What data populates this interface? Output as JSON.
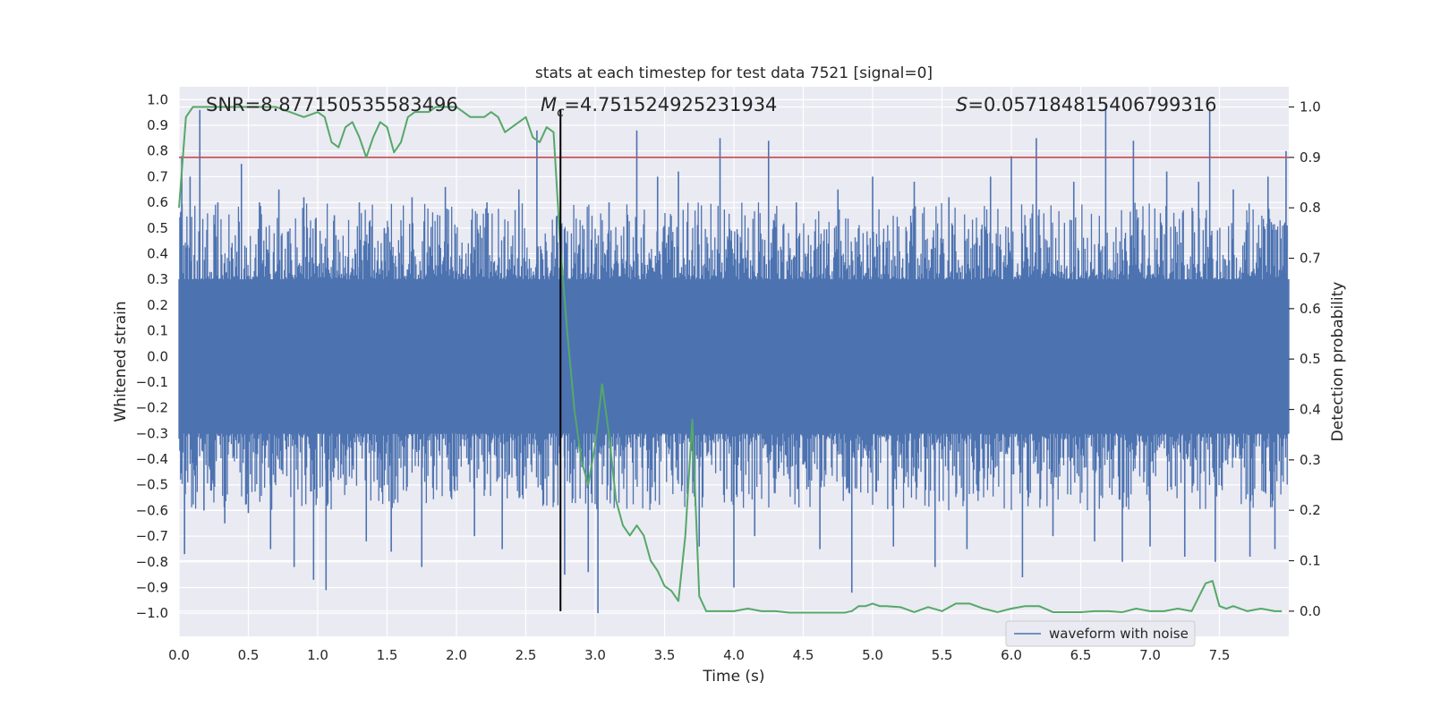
{
  "chart_data": {
    "type": "line",
    "title": "stats at each timestep for test data 7521 [signal=0]",
    "xlabel": "Time (s)",
    "ylabel_left": "Whitened strain",
    "ylabel_right": "Detection probability",
    "xlim": [
      0.0,
      8.0
    ],
    "ylim_left": [
      -1.09,
      1.05
    ],
    "ylim_right": [
      -0.05,
      1.04
    ],
    "x_ticks": [
      0.0,
      0.5,
      1.0,
      1.5,
      2.0,
      2.5,
      3.0,
      3.5,
      4.0,
      4.5,
      5.0,
      5.5,
      6.0,
      6.5,
      7.0,
      7.5
    ],
    "x_tick_labels": [
      "0.0",
      "0.5",
      "1.0",
      "1.5",
      "2.0",
      "2.5",
      "3.0",
      "3.5",
      "4.0",
      "4.5",
      "5.0",
      "5.5",
      "6.0",
      "6.5",
      "7.0",
      "7.5"
    ],
    "y_left_ticks": [
      1.0,
      0.9,
      0.8,
      0.7,
      0.6,
      0.5,
      0.4,
      0.3,
      0.2,
      0.1,
      0.0,
      -0.1,
      -0.2,
      -0.3,
      -0.4,
      -0.5,
      -0.6,
      -0.7,
      -0.8,
      -0.9,
      -1.0
    ],
    "y_left_tick_labels": [
      "1.0",
      "0.9",
      "0.8",
      "0.7",
      "0.6",
      "0.5",
      "0.4",
      "0.3",
      "0.2",
      "0.1",
      "0.0",
      "−0.1",
      "−0.2",
      "−0.3",
      "−0.4",
      "−0.5",
      "−0.6",
      "−0.7",
      "−0.8",
      "−0.9",
      "−1.0"
    ],
    "y_right_ticks": [
      1.0,
      0.9,
      0.8,
      0.7,
      0.6,
      0.5,
      0.4,
      0.3,
      0.2,
      0.1,
      0.0
    ],
    "y_right_tick_labels": [
      "1.0",
      "0.9",
      "0.8",
      "0.7",
      "0.6",
      "0.5",
      "0.4",
      "0.3",
      "0.2",
      "0.1",
      "0.0"
    ],
    "grid": true,
    "legend": {
      "placement": "lower-right",
      "entries": [
        "waveform with noise"
      ]
    },
    "annotations": {
      "snr": "SNR=8.877150535583496",
      "mc_symbol": "M",
      "mc_sub": "c",
      "mc_value": "=4.751524925231934",
      "s_symbol": "S",
      "s_value": "=0.057184815406799316"
    },
    "threshold": {
      "axis": "right",
      "value": 0.9
    },
    "marker_time": 2.75,
    "waveform": {
      "name": "waveform with noise",
      "typical_envelope": [
        -0.3,
        0.3
      ],
      "peaks": [
        {
          "x": 0.02,
          "y": 0.78
        },
        {
          "x": 0.04,
          "y": -0.77
        },
        {
          "x": 0.08,
          "y": 0.7
        },
        {
          "x": 0.15,
          "y": 0.96
        },
        {
          "x": 0.18,
          "y": -0.6
        },
        {
          "x": 0.28,
          "y": 0.6
        },
        {
          "x": 0.33,
          "y": -0.65
        },
        {
          "x": 0.45,
          "y": 0.75
        },
        {
          "x": 0.5,
          "y": -0.61
        },
        {
          "x": 0.58,
          "y": 0.6
        },
        {
          "x": 0.66,
          "y": -0.75
        },
        {
          "x": 0.72,
          "y": 0.65
        },
        {
          "x": 0.83,
          "y": -0.82
        },
        {
          "x": 0.9,
          "y": 0.62
        },
        {
          "x": 0.97,
          "y": -0.87
        },
        {
          "x": 1.06,
          "y": -0.91
        },
        {
          "x": 1.12,
          "y": 0.55
        },
        {
          "x": 1.3,
          "y": 0.6
        },
        {
          "x": 1.35,
          "y": -0.72
        },
        {
          "x": 1.48,
          "y": 0.5
        },
        {
          "x": 1.53,
          "y": -0.76
        },
        {
          "x": 1.68,
          "y": 0.62
        },
        {
          "x": 1.75,
          "y": -0.82
        },
        {
          "x": 1.92,
          "y": 0.66
        },
        {
          "x": 2.13,
          "y": -0.7
        },
        {
          "x": 2.22,
          "y": 0.6
        },
        {
          "x": 2.33,
          "y": -0.75
        },
        {
          "x": 2.45,
          "y": 0.65
        },
        {
          "x": 2.58,
          "y": 0.88
        },
        {
          "x": 2.78,
          "y": -0.85
        },
        {
          "x": 2.95,
          "y": -0.84
        },
        {
          "x": 3.02,
          "y": -1.0
        },
        {
          "x": 3.1,
          "y": 0.6
        },
        {
          "x": 3.3,
          "y": 0.88
        },
        {
          "x": 3.45,
          "y": 0.7
        },
        {
          "x": 3.6,
          "y": 0.72
        },
        {
          "x": 3.75,
          "y": -0.74
        },
        {
          "x": 3.9,
          "y": 0.85
        },
        {
          "x": 4.0,
          "y": -0.9
        },
        {
          "x": 4.15,
          "y": -0.7
        },
        {
          "x": 4.25,
          "y": 0.84
        },
        {
          "x": 4.45,
          "y": 0.6
        },
        {
          "x": 4.62,
          "y": -0.75
        },
        {
          "x": 4.75,
          "y": 0.65
        },
        {
          "x": 4.85,
          "y": -0.92
        },
        {
          "x": 5.0,
          "y": 0.7
        },
        {
          "x": 5.15,
          "y": -0.74
        },
        {
          "x": 5.3,
          "y": 0.68
        },
        {
          "x": 5.45,
          "y": -0.82
        },
        {
          "x": 5.55,
          "y": 0.62
        },
        {
          "x": 5.68,
          "y": -0.75
        },
        {
          "x": 5.85,
          "y": 0.7
        },
        {
          "x": 6.0,
          "y": 0.78
        },
        {
          "x": 6.08,
          "y": -0.86
        },
        {
          "x": 6.18,
          "y": 0.85
        },
        {
          "x": 6.3,
          "y": -0.7
        },
        {
          "x": 6.45,
          "y": 0.68
        },
        {
          "x": 6.6,
          "y": -0.72
        },
        {
          "x": 6.68,
          "y": 0.98
        },
        {
          "x": 6.8,
          "y": -0.8
        },
        {
          "x": 6.88,
          "y": 0.84
        },
        {
          "x": 7.0,
          "y": -0.74
        },
        {
          "x": 7.12,
          "y": 0.72
        },
        {
          "x": 7.25,
          "y": -0.78
        },
        {
          "x": 7.35,
          "y": 0.68
        },
        {
          "x": 7.43,
          "y": 0.96
        },
        {
          "x": 7.47,
          "y": -0.8
        },
        {
          "x": 7.6,
          "y": 0.65
        },
        {
          "x": 7.72,
          "y": -0.78
        },
        {
          "x": 7.85,
          "y": 0.7
        },
        {
          "x": 7.9,
          "y": -0.75
        },
        {
          "x": 7.98,
          "y": 0.8
        }
      ]
    },
    "probability_series": {
      "x": [
        0.0,
        0.05,
        0.1,
        0.15,
        0.2,
        0.3,
        0.4,
        0.5,
        0.6,
        0.7,
        0.8,
        0.9,
        1.0,
        1.05,
        1.1,
        1.15,
        1.2,
        1.25,
        1.3,
        1.35,
        1.4,
        1.45,
        1.5,
        1.55,
        1.6,
        1.65,
        1.7,
        1.75,
        1.8,
        1.85,
        1.9,
        1.95,
        2.0,
        2.05,
        2.1,
        2.15,
        2.2,
        2.25,
        2.3,
        2.35,
        2.4,
        2.45,
        2.5,
        2.55,
        2.6,
        2.65,
        2.7,
        2.75,
        2.8,
        2.85,
        2.9,
        2.95,
        3.0,
        3.05,
        3.1,
        3.15,
        3.2,
        3.25,
        3.3,
        3.35,
        3.4,
        3.45,
        3.5,
        3.55,
        3.6,
        3.65,
        3.7,
        3.75,
        3.8,
        3.9,
        4.0,
        4.1,
        4.2,
        4.3,
        4.4,
        4.5,
        4.6,
        4.7,
        4.8,
        4.85,
        4.9,
        4.95,
        5.0,
        5.05,
        5.1,
        5.2,
        5.3,
        5.4,
        5.5,
        5.6,
        5.7,
        5.8,
        5.9,
        6.0,
        6.1,
        6.2,
        6.3,
        6.4,
        6.5,
        6.6,
        6.7,
        6.8,
        6.9,
        7.0,
        7.1,
        7.2,
        7.3,
        7.4,
        7.45,
        7.5,
        7.55,
        7.6,
        7.65,
        7.7,
        7.8,
        7.9,
        7.95
      ],
      "y": [
        0.8,
        0.98,
        1.0,
        1.0,
        1.0,
        1.0,
        1.0,
        1.0,
        1.0,
        1.0,
        0.99,
        0.98,
        0.99,
        0.98,
        0.93,
        0.92,
        0.96,
        0.97,
        0.94,
        0.9,
        0.94,
        0.97,
        0.96,
        0.91,
        0.93,
        0.98,
        0.99,
        0.99,
        0.99,
        1.0,
        1.0,
        1.0,
        1.0,
        0.99,
        0.98,
        0.98,
        0.98,
        0.99,
        0.98,
        0.95,
        0.96,
        0.97,
        0.98,
        0.94,
        0.93,
        0.96,
        0.95,
        0.72,
        0.55,
        0.4,
        0.3,
        0.25,
        0.33,
        0.45,
        0.35,
        0.22,
        0.17,
        0.15,
        0.17,
        0.15,
        0.1,
        0.08,
        0.05,
        0.04,
        0.02,
        0.15,
        0.38,
        0.03,
        0.0,
        0.0,
        0.0,
        0.005,
        0.0,
        0.0,
        -0.003,
        -0.003,
        -0.003,
        -0.003,
        -0.003,
        0.0,
        0.01,
        0.01,
        0.015,
        0.01,
        0.01,
        0.008,
        -0.002,
        0.008,
        0.0,
        0.015,
        0.015,
        0.005,
        -0.002,
        0.005,
        0.01,
        0.01,
        -0.002,
        -0.002,
        -0.002,
        0.0,
        0.0,
        -0.002,
        0.005,
        0.0,
        0.0,
        0.005,
        0.0,
        0.055,
        0.06,
        0.01,
        0.005,
        0.01,
        0.005,
        0.0,
        0.005,
        0.0,
        0.0
      ]
    }
  },
  "colors": {
    "waveform": "#4c72b0",
    "probability": "#55a868",
    "threshold": "#c44e52",
    "marker": "#000000",
    "plot_background": "#eaeaf2",
    "grid": "#ffffff"
  }
}
